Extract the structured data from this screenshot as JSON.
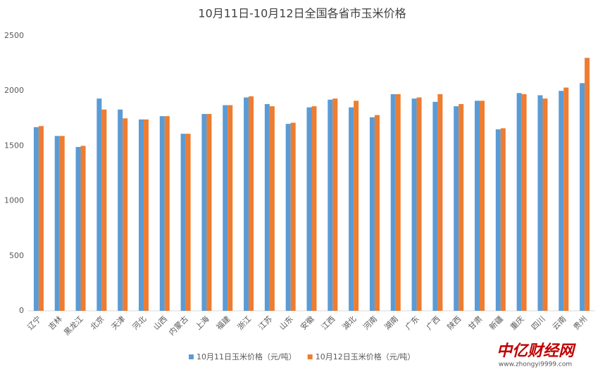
{
  "chart_data": {
    "type": "bar",
    "title": "10月11日-10月12日全国各省市玉米价格",
    "categories": [
      "辽宁",
      "吉林",
      "黑龙江",
      "北京",
      "天津",
      "河北",
      "山西",
      "内蒙古",
      "上海",
      "福建",
      "浙江",
      "江苏",
      "山东",
      "安徽",
      "江西",
      "湖北",
      "河南",
      "湖南",
      "广东",
      "广西",
      "陕西",
      "甘肃",
      "新疆",
      "重庆",
      "四川",
      "云南",
      "贵州"
    ],
    "series": [
      {
        "name": "10月11日玉米价格（元/吨）",
        "color": "#5b9bd5",
        "values": [
          1670,
          1590,
          1490,
          1930,
          1830,
          1740,
          1770,
          1610,
          1790,
          1870,
          1940,
          1880,
          1700,
          1850,
          1920,
          1850,
          1760,
          1970,
          1930,
          1900,
          1860,
          1910,
          1650,
          1980,
          1960,
          2000,
          2070
        ]
      },
      {
        "name": "10月12日玉米价格（元/吨）",
        "color": "#ed7d31",
        "values": [
          1680,
          1590,
          1500,
          1830,
          1750,
          1740,
          1770,
          1610,
          1790,
          1870,
          1950,
          1860,
          1710,
          1860,
          1930,
          1910,
          1780,
          1970,
          1940,
          1970,
          1880,
          1910,
          1660,
          1970,
          1930,
          2030,
          2300
        ]
      }
    ],
    "ylim": [
      0,
      2500
    ],
    "yticks": [
      0,
      500,
      1000,
      1500,
      2000,
      2500
    ],
    "grid": false,
    "legend": "bottom"
  },
  "watermark": {
    "brand": "中亿财经网",
    "url": "www.zhongyi9999.com"
  }
}
